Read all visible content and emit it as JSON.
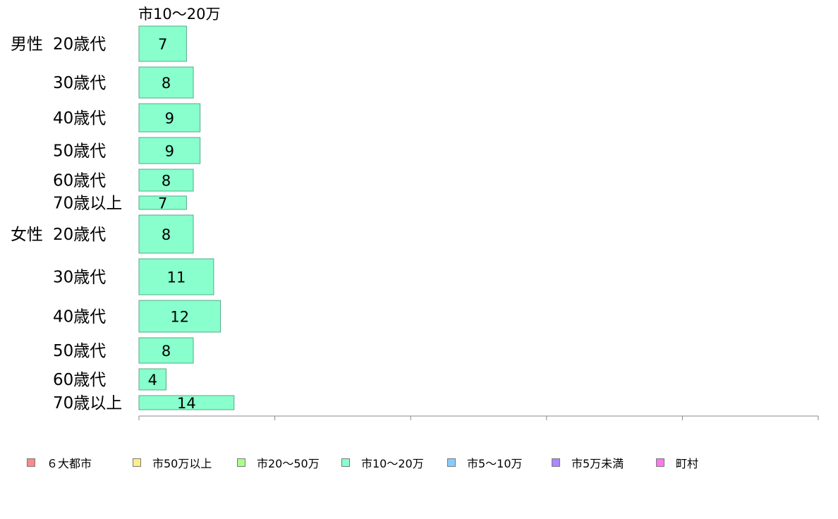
{
  "chart_data": {
    "type": "bar",
    "orientation": "horizontal",
    "title": "市10〜20万",
    "groups": [
      {
        "label": "男性",
        "categories": [
          "20歳代",
          "30歳代",
          "40歳代",
          "50歳代",
          "60歳代",
          "70歳以上"
        ],
        "values": [
          7,
          8,
          9,
          9,
          8,
          7
        ]
      },
      {
        "label": "女性",
        "categories": [
          "20歳代",
          "30歳代",
          "40歳代",
          "50歳代",
          "60歳代",
          "70歳以上"
        ],
        "values": [
          8,
          11,
          12,
          8,
          4,
          14
        ]
      }
    ],
    "xlim": [
      0,
      100
    ],
    "xticks": [
      "0",
      "20",
      "40",
      "60",
      "80",
      "100"
    ],
    "bar_color": "#88ffcc",
    "bar_border_color": "#58a888",
    "grid": false,
    "legend_placement": "bottom",
    "legend": [
      {
        "name": "６大都市",
        "color": "#ff8888"
      },
      {
        "name": "市50万以上",
        "color": "#ffee88"
      },
      {
        "name": "市20〜50万",
        "color": "#aaff88"
      },
      {
        "name": "市10〜20万",
        "color": "#88ffcc"
      },
      {
        "name": "市5〜10万",
        "color": "#88ccff"
      },
      {
        "name": "市5万未満",
        "color": "#aa88ff"
      },
      {
        "name": "町村",
        "color": "#ff77ee"
      }
    ]
  }
}
